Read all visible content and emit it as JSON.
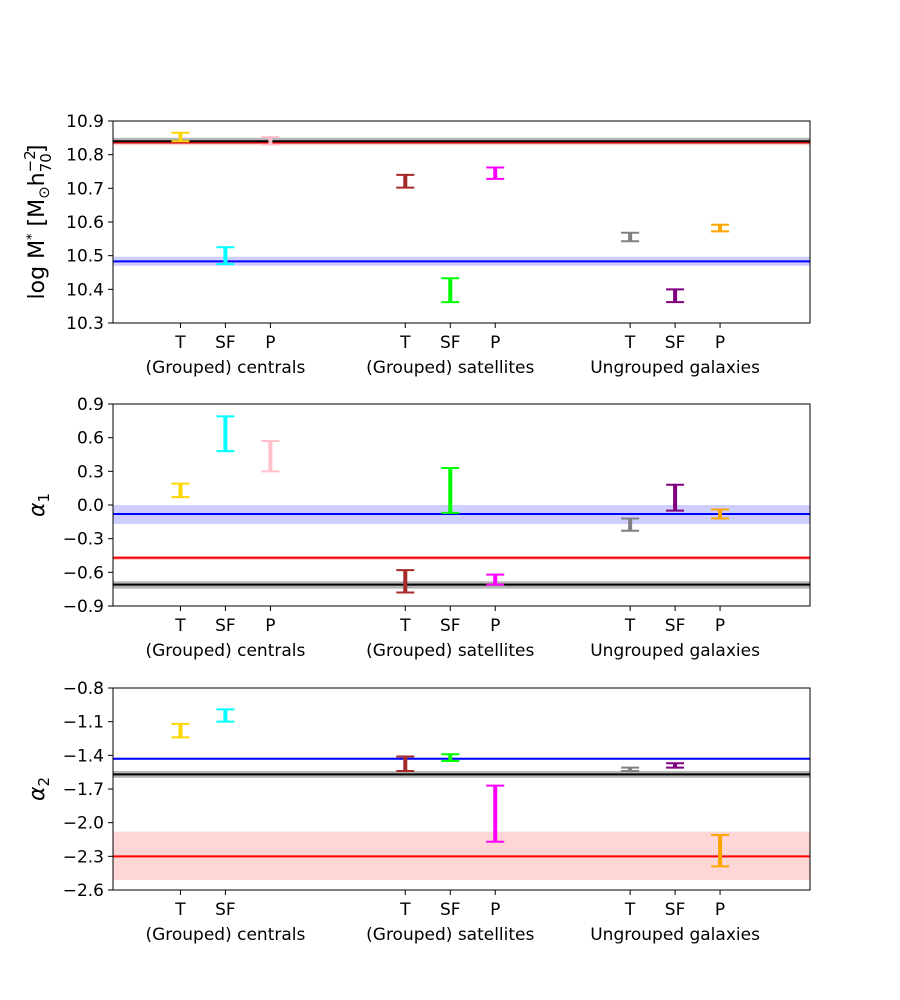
{
  "chart_data": [
    {
      "type": "errorbar",
      "panel": "top",
      "ylabel": "log M* [M⊙h₇₀⁻²]",
      "ylabel_parts": {
        "main": "log M",
        "star": "*",
        "bracket_open": " [M",
        "sun": "⊙",
        "h": "h",
        "sub": "70",
        "sup": "−2",
        "bracket_close": "]"
      },
      "ylim": [
        10.3,
        10.9
      ],
      "yticks": [
        10.3,
        10.4,
        10.5,
        10.6,
        10.7,
        10.8,
        10.9
      ],
      "ytick_labels": [
        "10.3",
        "10.4",
        "10.5",
        "10.6",
        "10.7",
        "10.8",
        "10.9"
      ],
      "points": [
        {
          "x": 1,
          "label": "T",
          "low": 10.84,
          "high": 10.865,
          "color": "#ffd700"
        },
        {
          "x": 2,
          "label": "SF",
          "low": 10.475,
          "high": 10.525,
          "color": "#00ffff"
        },
        {
          "x": 3,
          "label": "P",
          "low": 10.83,
          "high": 10.852,
          "color": "#ffc0cb"
        },
        {
          "x": 6,
          "label": "T",
          "low": 10.702,
          "high": 10.74,
          "color": "#a52a2a"
        },
        {
          "x": 7,
          "label": "SF",
          "low": 10.362,
          "high": 10.433,
          "color": "#00ff00"
        },
        {
          "x": 8,
          "label": "P",
          "low": 10.728,
          "high": 10.762,
          "color": "#ff00ff"
        },
        {
          "x": 11,
          "label": "T",
          "low": 10.543,
          "high": 10.568,
          "color": "#808080"
        },
        {
          "x": 12,
          "label": "SF",
          "low": 10.362,
          "high": 10.4,
          "color": "#800080"
        },
        {
          "x": 13,
          "label": "P",
          "low": 10.572,
          "high": 10.592,
          "color": "#ffa500"
        }
      ],
      "hlines": [
        {
          "value": 10.836,
          "band": [
            10.828,
            10.846
          ],
          "color": "#ff0000",
          "band_color": "#ffd0d0"
        },
        {
          "value": 10.84,
          "band": [
            10.832,
            10.85
          ],
          "color": "#000000",
          "band_color": "#b4b4b4"
        },
        {
          "value": 10.483,
          "band": [
            10.47,
            10.497
          ],
          "color": "#0000ff",
          "band_color": "#cfcfff"
        }
      ],
      "xticks": [
        {
          "x": 1,
          "label": "T"
        },
        {
          "x": 2,
          "label": "SF"
        },
        {
          "x": 3,
          "label": "P"
        },
        {
          "x": 6,
          "label": "T"
        },
        {
          "x": 7,
          "label": "SF"
        },
        {
          "x": 8,
          "label": "P"
        },
        {
          "x": 11,
          "label": "T"
        },
        {
          "x": 12,
          "label": "SF"
        },
        {
          "x": 13,
          "label": "P"
        }
      ],
      "groups": [
        {
          "x": 2,
          "label": "(Grouped) centrals"
        },
        {
          "x": 7,
          "label": "(Grouped) satellites"
        },
        {
          "x": 12,
          "label": "Ungrouped galaxies"
        }
      ]
    },
    {
      "type": "errorbar",
      "panel": "middle",
      "ylabel": "α₁",
      "ylabel_parts": {
        "main": "α",
        "sub": "1"
      },
      "ylim": [
        -0.9,
        0.9
      ],
      "yticks": [
        -0.9,
        -0.6,
        -0.3,
        0.0,
        0.3,
        0.6,
        0.9
      ],
      "ytick_labels": [
        "−0.9",
        "−0.6",
        "−0.3",
        "0.0",
        "0.3",
        "0.6",
        "0.9"
      ],
      "points": [
        {
          "x": 1,
          "label": "T",
          "low": 0.07,
          "high": 0.19,
          "color": "#ffd700"
        },
        {
          "x": 2,
          "label": "SF",
          "low": 0.48,
          "high": 0.79,
          "color": "#00ffff"
        },
        {
          "x": 3,
          "label": "P",
          "low": 0.3,
          "high": 0.57,
          "color": "#ffc0cb"
        },
        {
          "x": 6,
          "label": "T",
          "low": -0.78,
          "high": -0.58,
          "color": "#a52a2a"
        },
        {
          "x": 7,
          "label": "SF",
          "low": -0.07,
          "high": 0.33,
          "color": "#00ff00"
        },
        {
          "x": 8,
          "label": "P",
          "low": -0.71,
          "high": -0.62,
          "color": "#ff00ff"
        },
        {
          "x": 11,
          "label": "T",
          "low": -0.23,
          "high": -0.12,
          "color": "#808080"
        },
        {
          "x": 12,
          "label": "SF",
          "low": -0.05,
          "high": 0.18,
          "color": "#800080"
        },
        {
          "x": 13,
          "label": "P",
          "low": -0.12,
          "high": -0.04,
          "color": "#ffa500"
        }
      ],
      "hlines": [
        {
          "value": -0.08,
          "band": [
            -0.17,
            0.0
          ],
          "color": "#0000ff",
          "band_color": "#cfcfff"
        },
        {
          "value": -0.47,
          "band": [
            -0.49,
            -0.455
          ],
          "color": "#ff0000",
          "band_color": "#ffd0d0"
        },
        {
          "value": -0.71,
          "band": [
            -0.745,
            -0.68
          ],
          "color": "#000000",
          "band_color": "#b4b4b4"
        }
      ],
      "xticks": [
        {
          "x": 1,
          "label": "T"
        },
        {
          "x": 2,
          "label": "SF"
        },
        {
          "x": 3,
          "label": "P"
        },
        {
          "x": 6,
          "label": "T"
        },
        {
          "x": 7,
          "label": "SF"
        },
        {
          "x": 8,
          "label": "P"
        },
        {
          "x": 11,
          "label": "T"
        },
        {
          "x": 12,
          "label": "SF"
        },
        {
          "x": 13,
          "label": "P"
        }
      ],
      "groups": [
        {
          "x": 2,
          "label": "(Grouped) centrals"
        },
        {
          "x": 7,
          "label": "(Grouped) satellites"
        },
        {
          "x": 12,
          "label": "Ungrouped galaxies"
        }
      ]
    },
    {
      "type": "errorbar",
      "panel": "bottom",
      "ylabel": "α₂",
      "ylabel_parts": {
        "main": "α",
        "sub": "2"
      },
      "ylim": [
        -2.6,
        -0.8
      ],
      "yticks": [
        -2.6,
        -2.3,
        -2.0,
        -1.7,
        -1.4,
        -1.1,
        -0.8
      ],
      "ytick_labels": [
        "−2.6",
        "−2.3",
        "−2.0",
        "−1.7",
        "−1.4",
        "−1.1",
        "−0.8"
      ],
      "points": [
        {
          "x": 1,
          "label": "T",
          "low": -1.24,
          "high": -1.12,
          "color": "#ffd700"
        },
        {
          "x": 2,
          "label": "SF",
          "low": -1.1,
          "high": -0.99,
          "color": "#00ffff"
        },
        {
          "x": 6,
          "label": "T",
          "low": -1.54,
          "high": -1.41,
          "color": "#a52a2a"
        },
        {
          "x": 7,
          "label": "SF",
          "low": -1.45,
          "high": -1.39,
          "color": "#00ff00"
        },
        {
          "x": 8,
          "label": "P",
          "low": -2.17,
          "high": -1.67,
          "color": "#ff00ff"
        },
        {
          "x": 11,
          "label": "T",
          "low": -1.54,
          "high": -1.51,
          "color": "#808080"
        },
        {
          "x": 12,
          "label": "SF",
          "low": -1.51,
          "high": -1.47,
          "color": "#800080"
        },
        {
          "x": 13,
          "label": "P",
          "low": -2.39,
          "high": -2.11,
          "color": "#ffa500"
        }
      ],
      "hlines": [
        {
          "value": -1.43,
          "band": [
            -1.44,
            -1.42
          ],
          "color": "#0000ff",
          "band_color": "#cfcfff"
        },
        {
          "value": -1.57,
          "band": [
            -1.6,
            -1.54
          ],
          "color": "#000000",
          "band_color": "#b4b4b4"
        },
        {
          "value": -2.3,
          "band": [
            -2.51,
            -2.08
          ],
          "color": "#ff0000",
          "band_color": "#ffd6d6"
        }
      ],
      "xticks": [
        {
          "x": 1,
          "label": "T"
        },
        {
          "x": 2,
          "label": "SF"
        },
        {
          "x": 6,
          "label": "T"
        },
        {
          "x": 7,
          "label": "SF"
        },
        {
          "x": 8,
          "label": "P"
        },
        {
          "x": 11,
          "label": "T"
        },
        {
          "x": 12,
          "label": "SF"
        },
        {
          "x": 13,
          "label": "P"
        }
      ],
      "groups": [
        {
          "x": 2,
          "label": "(Grouped) centrals"
        },
        {
          "x": 7,
          "label": "(Grouped) satellites"
        },
        {
          "x": 12,
          "label": "Ungrouped galaxies"
        }
      ]
    }
  ]
}
